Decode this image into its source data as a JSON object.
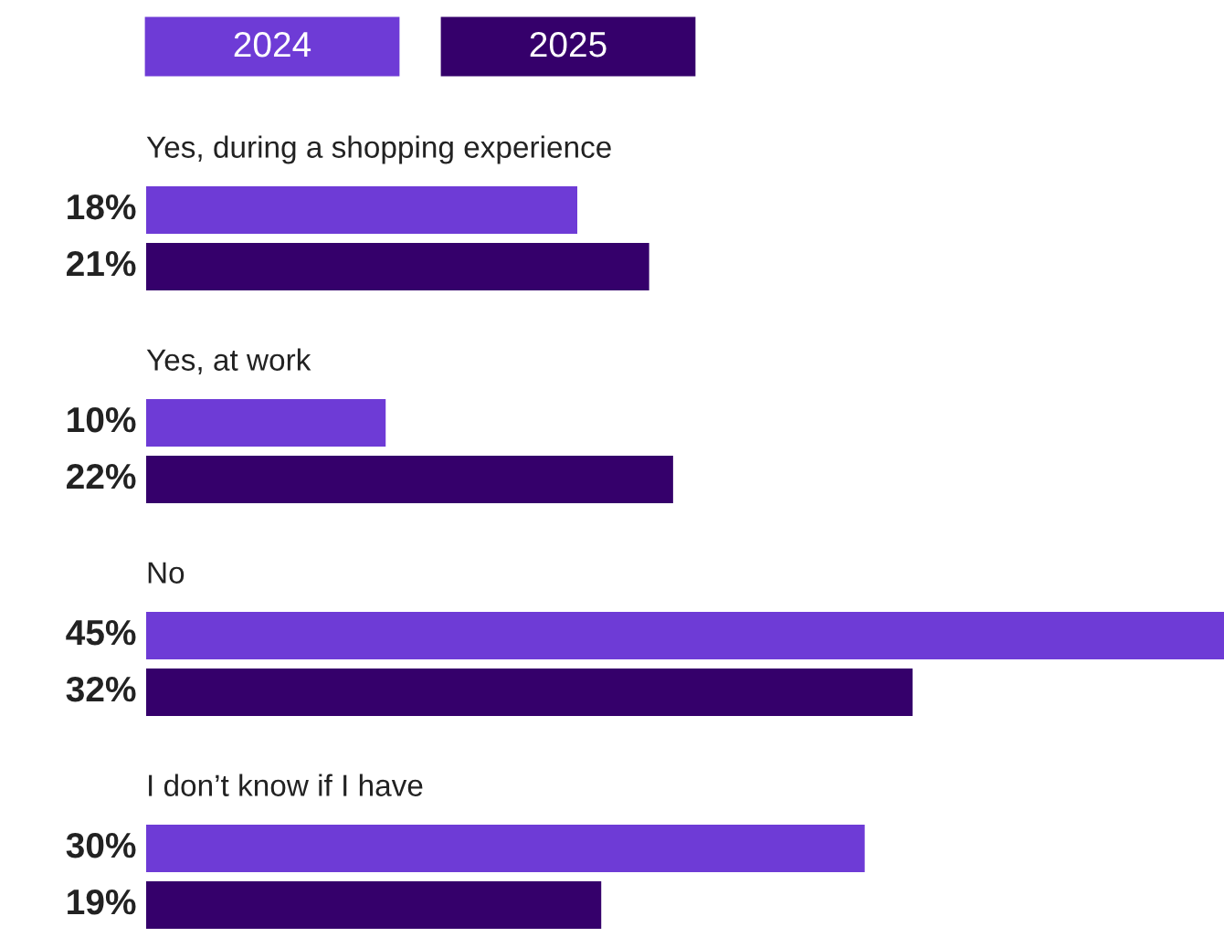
{
  "chart_data": {
    "type": "bar",
    "orientation": "horizontal",
    "legend": "top left",
    "categories": [
      "Yes, during a shopping experience",
      "Yes, at work",
      "No",
      "I don’t know if I have"
    ],
    "series": [
      {
        "name": "2024",
        "color": "#6e3bd6",
        "values": [
          18,
          10,
          45,
          30
        ],
        "value_labels": [
          "18%",
          "10%",
          "45%",
          "30%"
        ]
      },
      {
        "name": "2025",
        "color": "#35006b",
        "values": [
          21,
          22,
          32,
          19
        ],
        "value_labels": [
          "21%",
          "22%",
          "32%",
          "19%"
        ]
      }
    ]
  }
}
